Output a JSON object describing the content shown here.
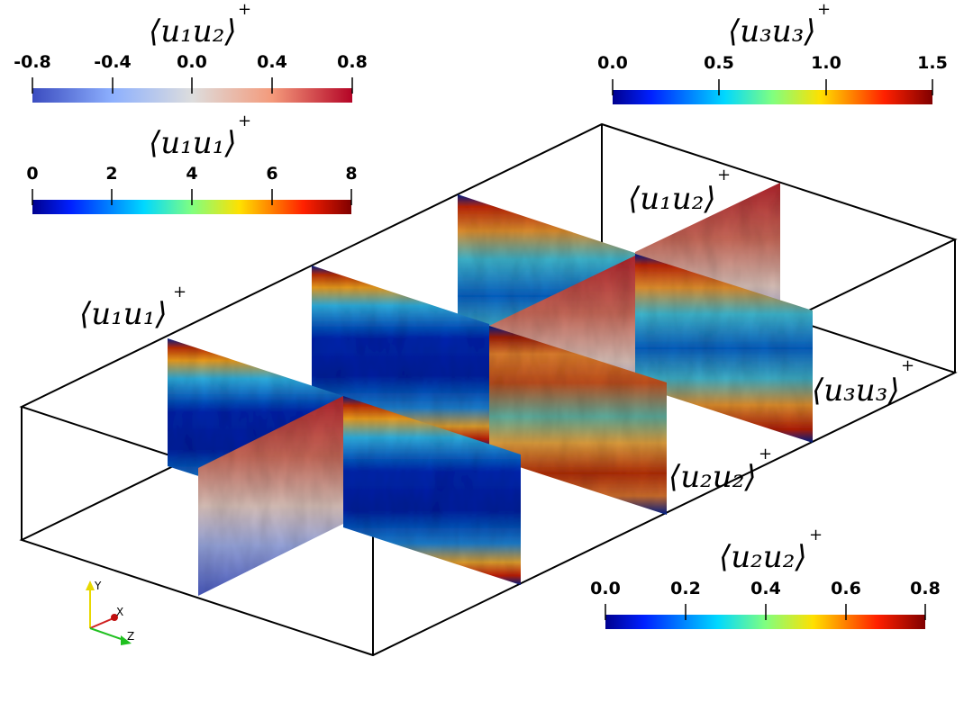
{
  "colorbars": [
    {
      "id": "u1u2-bar",
      "title": "⟨u₁u₂⟩",
      "superscript": "+",
      "ticks": [
        "-0.8",
        "-0.4",
        "0.0",
        "0.4",
        "0.8"
      ],
      "tick_values": [
        -0.8,
        -0.4,
        0.0,
        0.4,
        0.8
      ],
      "range": [
        -0.8,
        0.8
      ],
      "colormap": [
        "#3b4cc0",
        "#8db0fe",
        "#dddddd",
        "#f49a7b",
        "#b40426"
      ]
    },
    {
      "id": "u3u3-bar",
      "title": "⟨u₃u₃⟩",
      "superscript": "+",
      "ticks": [
        "0.0",
        "0.5",
        "1.0",
        "1.5"
      ],
      "tick_values": [
        0.0,
        0.5,
        1.0,
        1.5
      ],
      "range": [
        0.0,
        1.5
      ],
      "colormap": [
        "#00008f",
        "#0050ff",
        "#00e0ff",
        "#a0ff60",
        "#ffe000",
        "#ff4000",
        "#8f0000"
      ]
    },
    {
      "id": "u1u1-bar",
      "title": "⟨u₁u₁⟩",
      "superscript": "+",
      "ticks": [
        "0",
        "2",
        "4",
        "6",
        "8"
      ],
      "tick_values": [
        0,
        2,
        4,
        6,
        8
      ],
      "range": [
        0,
        8
      ],
      "colormap": [
        "#00008f",
        "#0050ff",
        "#00e0ff",
        "#a0ff60",
        "#ffe000",
        "#ff4000",
        "#8f0000"
      ]
    },
    {
      "id": "u2u2-bar",
      "title": "⟨u₂u₂⟩",
      "superscript": "+",
      "ticks": [
        "0.0",
        "0.2",
        "0.4",
        "0.6",
        "0.8"
      ],
      "tick_values": [
        0.0,
        0.2,
        0.4,
        0.6,
        0.8
      ],
      "range": [
        0.0,
        0.8
      ],
      "colormap": [
        "#00008f",
        "#0050ff",
        "#00e0ff",
        "#a0ff60",
        "#ffe000",
        "#ff4000",
        "#8f0000"
      ]
    }
  ],
  "field_labels": {
    "u1u1": "⟨u₁u₁⟩",
    "u1u2": "⟨u₁u₂⟩",
    "u2u2": "⟨u₂u₂⟩",
    "u3u3": "⟨u₃u₃⟩",
    "superscript": "+"
  },
  "axes_triad": {
    "y": "Y",
    "x": "X",
    "z": "Z"
  },
  "colors": {
    "jet_low": "#00008f",
    "jet_high": "#8f0000",
    "coolwarm_low": "#3b4cc0",
    "coolwarm_high": "#b40426",
    "box_line": "#000000"
  }
}
